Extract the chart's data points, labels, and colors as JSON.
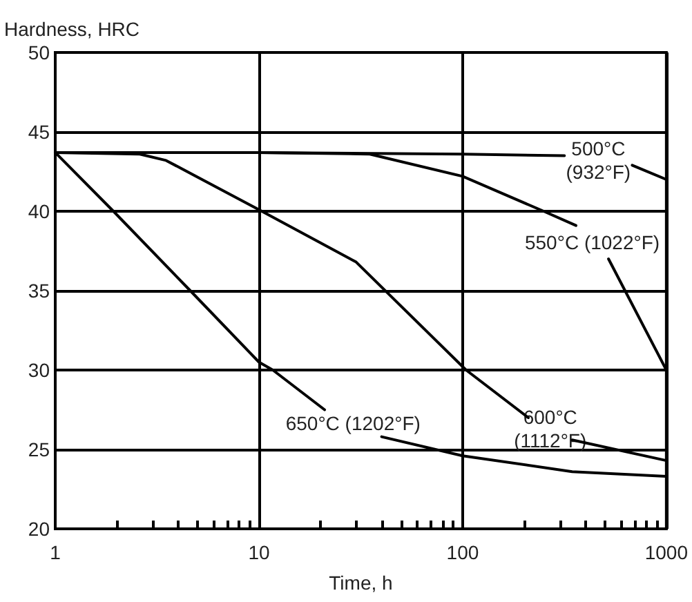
{
  "chart_data": {
    "type": "line",
    "xlabel": "Time, h",
    "ylabel": "Hardness, HRC",
    "log": "x",
    "grid": true,
    "marker": "none",
    "line_style": "solid",
    "xlim": [
      1,
      1000
    ],
    "ylim": [
      20,
      50
    ],
    "xticks": [
      1,
      {
        "value": 2,
        "label": null
      },
      {
        "value": 3,
        "label": null
      },
      {
        "value": 4,
        "label": null
      },
      {
        "value": 5,
        "label": null
      },
      {
        "value": 6,
        "label": null
      },
      {
        "value": 7,
        "label": null
      },
      {
        "value": 8,
        "label": null
      },
      {
        "value": 9,
        "label": null
      },
      10,
      {
        "value": 20,
        "label": null
      },
      {
        "value": 30,
        "label": null
      },
      {
        "value": 40,
        "label": null
      },
      {
        "value": 50,
        "label": null
      },
      {
        "value": 60,
        "label": null
      },
      {
        "value": 70,
        "label": null
      },
      {
        "value": 80,
        "label": null
      },
      {
        "value": 90,
        "label": null
      },
      100,
      {
        "value": 200,
        "label": null
      },
      {
        "value": 300,
        "label": null
      },
      {
        "value": 400,
        "label": null
      },
      {
        "value": 500,
        "label": null
      },
      {
        "value": 600,
        "label": null
      },
      {
        "value": 700,
        "label": null
      },
      {
        "value": 800,
        "label": null
      },
      {
        "value": 900,
        "label": null
      },
      1000
    ],
    "yticks": [
      20,
      25,
      30,
      35,
      40,
      45,
      50
    ],
    "series": [
      {
        "name": "500°C\n(932°F)",
        "color": "#000000",
        "x": [
          1,
          10,
          100,
          316,
          450,
          680,
          1000
        ],
        "values": [
          43.7,
          43.7,
          43.6,
          43.5,
          null,
          42.9,
          42.0
        ]
      },
      {
        "name": "550°C (1022°F)",
        "color": "#000000",
        "x": [
          1,
          10,
          35,
          100,
          250,
          360,
          430,
          520,
          1000
        ],
        "values": [
          43.7,
          43.7,
          43.6,
          42.2,
          40.0,
          39.1,
          null,
          37.0,
          30.0
        ]
      },
      {
        "name": "600°C\n(1112°F)",
        "color": "#000000",
        "x": [
          1,
          2.6,
          3.5,
          10,
          30,
          104,
          210,
          270,
          345,
          1000
        ],
        "values": [
          43.7,
          43.6,
          43.2,
          40.1,
          36.8,
          30.0,
          27.0,
          null,
          25.6,
          24.3
        ]
      },
      {
        "name": "650°C (1202°F)",
        "color": "#000000",
        "x": [
          1,
          1.93,
          4.6,
          10,
          11.7,
          21,
          30,
          40,
          100,
          345,
          1000
        ],
        "values": [
          43.7,
          40.0,
          35.0,
          30.5,
          30.0,
          27.5,
          null,
          25.8,
          24.6,
          23.6,
          23.3
        ]
      }
    ]
  }
}
